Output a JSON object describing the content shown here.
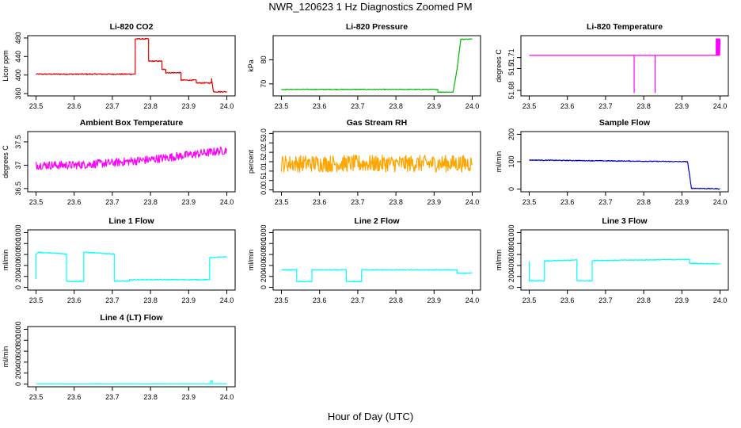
{
  "figure": {
    "title": "NWR_120623  1 Hz Diagnostics Zoomed PM",
    "xlabel": "Hour of Day (UTC)"
  },
  "chart_data": [
    {
      "id": "co2",
      "type": "line",
      "title": "Li-820 CO2",
      "ylabel": "Licor ppm",
      "color": "#e00000",
      "xlim": [
        23.5,
        24.0
      ],
      "xticks": [
        23.5,
        23.6,
        23.7,
        23.8,
        23.9,
        24.0
      ],
      "ylim": [
        355,
        485
      ],
      "yticks": [
        360,
        400,
        440,
        480
      ],
      "noise": 1.2,
      "series": [
        {
          "x": [
            23.5,
            23.76,
            23.76,
            23.795,
            23.795,
            23.83,
            23.83,
            23.84,
            23.84,
            23.88,
            23.88,
            23.92,
            23.92,
            23.96,
            23.96,
            23.965,
            24.0
          ],
          "y": [
            402,
            402,
            478,
            478,
            430,
            430,
            412,
            412,
            405,
            405,
            389,
            389,
            383,
            383,
            392,
            364,
            364
          ]
        }
      ]
    },
    {
      "id": "pressure",
      "type": "line",
      "title": "Li-820 Pressure",
      "ylabel": "kPa",
      "color": "#00bb00",
      "xlim": [
        23.5,
        24.0
      ],
      "xticks": [
        23.5,
        23.6,
        23.7,
        23.8,
        23.9,
        24.0
      ],
      "ylim": [
        65,
        90
      ],
      "yticks": [
        70,
        80
      ],
      "noise": 0.15,
      "series": [
        {
          "x": [
            23.5,
            23.91,
            23.91,
            23.95,
            23.96,
            23.97,
            24.0
          ],
          "y": [
            67.7,
            67.7,
            66.6,
            66.6,
            76,
            88.5,
            88.6
          ]
        }
      ]
    },
    {
      "id": "temp",
      "type": "line",
      "title": "Li-820 Temperature",
      "ylabel": "degrees C",
      "color": "#ff00ff",
      "xlim": [
        23.5,
        24.0
      ],
      "xticks": [
        23.5,
        23.6,
        23.7,
        23.8,
        23.9,
        24.0
      ],
      "ylim": [
        51.675,
        51.73
      ],
      "yticks": [
        51.68,
        51.7,
        51.71
      ],
      "ytick_labels": [
        "51.68",
        "51.7",
        "51.71"
      ],
      "noise": 0,
      "series": [
        {
          "x": [
            23.5,
            23.775,
            23.775,
            23.775,
            23.83,
            23.83,
            23.83,
            23.99,
            23.99,
            23.991,
            23.992,
            23.993,
            23.994,
            23.995,
            23.996,
            23.997,
            23.998,
            23.999,
            24.0
          ],
          "y": [
            51.712,
            51.712,
            51.678,
            51.712,
            51.712,
            51.678,
            51.712,
            51.712,
            51.727,
            51.712,
            51.727,
            51.712,
            51.727,
            51.712,
            51.727,
            51.712,
            51.727,
            51.712,
            51.727
          ]
        }
      ]
    },
    {
      "id": "ambient",
      "type": "line",
      "title": "Ambient Box Temperature",
      "ylabel": "degrees C",
      "color": "#ff00ff",
      "xlim": [
        23.5,
        24.0
      ],
      "xticks": [
        23.5,
        23.6,
        23.7,
        23.8,
        23.9,
        24.0
      ],
      "ylim": [
        36.43,
        37.72
      ],
      "yticks": [
        36.5,
        37.0,
        37.5
      ],
      "ytick_labels": [
        "36.5",
        "37",
        "37.5"
      ],
      "noise": 0.09,
      "series": [
        {
          "x": [
            23.5,
            23.6,
            23.7,
            23.8,
            23.9,
            24.0
          ],
          "y": [
            37.0,
            37.0,
            37.05,
            37.12,
            37.22,
            37.32
          ]
        }
      ]
    },
    {
      "id": "rh",
      "type": "line",
      "title": "Gas Stream RH",
      "ylabel": "percent",
      "color": "#ffa500",
      "xlim": [
        23.5,
        24.0
      ],
      "xticks": [
        23.5,
        23.6,
        23.7,
        23.8,
        23.9,
        24.0
      ],
      "ylim": [
        -0.1,
        3.1
      ],
      "yticks": [
        0.0,
        0.5,
        1.0,
        1.5,
        2.0,
        2.5,
        3.0
      ],
      "ytick_labels": [
        "0.0",
        "0.5",
        "1.0",
        "1.5",
        "2.0",
        "2.5",
        "3.0"
      ],
      "noise": 0.45,
      "series": [
        {
          "x": [
            23.5,
            24.0
          ],
          "y": [
            1.4,
            1.4
          ]
        }
      ]
    },
    {
      "id": "sample",
      "type": "line",
      "title": "Sample Flow",
      "ylabel": "ml/min",
      "color": "#0000cc",
      "xlim": [
        23.5,
        24.0
      ],
      "xticks": [
        23.5,
        23.6,
        23.7,
        23.8,
        23.9,
        24.0
      ],
      "ylim": [
        -10,
        210
      ],
      "yticks": [
        0,
        100,
        200
      ],
      "noise": 1.5,
      "series": [
        {
          "x": [
            23.5,
            23.91,
            23.915,
            23.925,
            24.0
          ],
          "y": [
            106,
            100,
            100,
            3,
            1
          ]
        }
      ]
    },
    {
      "id": "line1",
      "type": "line",
      "title": "Line 1 Flow",
      "ylabel": "ml/min",
      "color": "#00ffff",
      "xlim": [
        23.5,
        24.0
      ],
      "xticks": [
        23.5,
        23.6,
        23.7,
        23.8,
        23.9,
        24.0
      ],
      "ylim": [
        -50,
        1050
      ],
      "yticks": [
        0,
        200,
        400,
        600,
        800,
        1000
      ],
      "noise": 8,
      "series": [
        {
          "x": [
            23.5,
            23.5,
            23.505,
            23.58,
            23.58,
            23.625,
            23.625,
            23.705,
            23.705,
            23.745,
            23.745,
            23.955,
            23.955,
            24.0
          ],
          "y": [
            150,
            600,
            640,
            610,
            110,
            110,
            640,
            610,
            115,
            115,
            140,
            140,
            540,
            560
          ]
        }
      ]
    },
    {
      "id": "line2",
      "type": "line",
      "title": "Line 2 Flow",
      "ylabel": "ml/min",
      "color": "#00ffff",
      "xlim": [
        23.5,
        24.0
      ],
      "xticks": [
        23.5,
        23.6,
        23.7,
        23.8,
        23.9,
        24.0
      ],
      "ylim": [
        -50,
        1050
      ],
      "yticks": [
        0,
        200,
        400,
        600,
        800,
        1000
      ],
      "noise": 7,
      "series": [
        {
          "x": [
            23.5,
            23.54,
            23.54,
            23.58,
            23.58,
            23.67,
            23.67,
            23.71,
            23.71,
            23.96,
            23.96,
            24.0
          ],
          "y": [
            320,
            320,
            105,
            105,
            320,
            320,
            105,
            105,
            320,
            320,
            260,
            260
          ]
        }
      ]
    },
    {
      "id": "line3",
      "type": "line",
      "title": "Line 3 Flow",
      "ylabel": "ml/min",
      "color": "#00ffff",
      "xlim": [
        23.5,
        24.0
      ],
      "xticks": [
        23.5,
        23.6,
        23.7,
        23.8,
        23.9,
        24.0
      ],
      "ylim": [
        -50,
        1050
      ],
      "yticks": [
        0,
        200,
        400,
        600,
        800,
        1000
      ],
      "noise": 8,
      "series": [
        {
          "x": [
            23.5,
            23.5,
            23.505,
            23.54,
            23.54,
            23.625,
            23.625,
            23.665,
            23.665,
            23.92,
            23.92,
            24.0
          ],
          "y": [
            480,
            120,
            120,
            120,
            480,
            500,
            120,
            120,
            490,
            510,
            440,
            430
          ]
        }
      ]
    },
    {
      "id": "line4",
      "type": "line",
      "title": "Line 4 (LT) Flow",
      "ylabel": "ml/min",
      "color": "#00ffff",
      "xlim": [
        23.5,
        24.0
      ],
      "xticks": [
        23.5,
        23.6,
        23.7,
        23.8,
        23.9,
        24.0
      ],
      "ylim": [
        -50,
        1050
      ],
      "yticks": [
        0,
        200,
        400,
        600,
        800,
        1000
      ],
      "noise": 2,
      "series": [
        {
          "x": [
            23.5,
            23.958,
            23.958,
            23.962,
            23.962,
            24.0
          ],
          "y": [
            5,
            5,
            60,
            60,
            5,
            5
          ]
        }
      ]
    }
  ]
}
